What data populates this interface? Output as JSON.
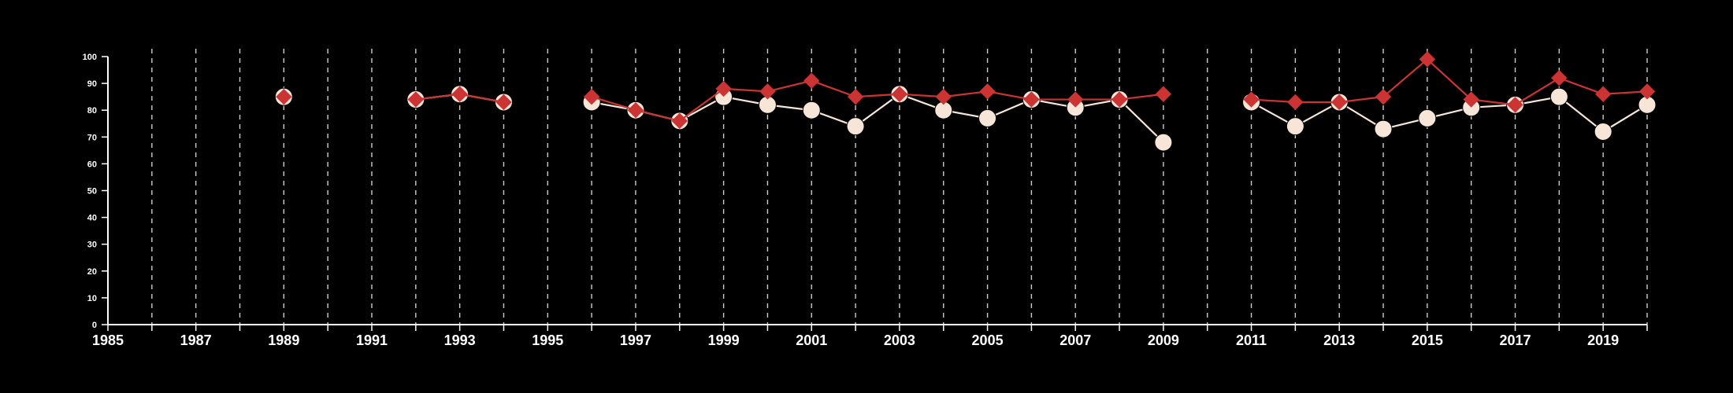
{
  "colors": {
    "background": "#000000",
    "axis": "#ffffff",
    "grid": "#cccccc",
    "series_white": "#f7e6d8",
    "series_red": "#cc3333"
  },
  "chart_data": {
    "type": "line",
    "title": "",
    "xlabel": "",
    "ylabel": "",
    "xlim": [
      1985,
      2020
    ],
    "ylim": [
      0,
      100
    ],
    "y_ticks": [
      0,
      10,
      20,
      30,
      40,
      50,
      60,
      70,
      80,
      90,
      100
    ],
    "x_tick_labels": [
      1985,
      1987,
      1989,
      1991,
      1993,
      1995,
      1997,
      1999,
      2001,
      2003,
      2005,
      2007,
      2009,
      2011,
      2013,
      2015,
      2017,
      2019
    ],
    "grid": "vertical dashed lines at every year",
    "series": [
      {
        "marker": "circle",
        "color": "#f7e6d8",
        "x": [
          1989,
          1992,
          1993,
          1994,
          1996,
          1997,
          1998,
          1999,
          2000,
          2001,
          2002,
          2003,
          2004,
          2005,
          2006,
          2007,
          2008,
          2009,
          2011,
          2012,
          2013,
          2014,
          2015,
          2016,
          2017,
          2018,
          2019,
          2020
        ],
        "y": [
          85,
          84,
          86,
          83,
          83,
          80,
          76,
          85,
          82,
          80,
          74,
          86,
          80,
          77,
          84,
          81,
          84,
          68,
          83,
          74,
          83,
          73,
          77,
          81,
          82,
          85,
          72,
          82
        ]
      },
      {
        "marker": "diamond",
        "color": "#cc3333",
        "x": [
          1989,
          1992,
          1993,
          1994,
          1996,
          1997,
          1998,
          1999,
          2000,
          2001,
          2002,
          2003,
          2004,
          2005,
          2006,
          2007,
          2008,
          2009,
          2011,
          2012,
          2013,
          2014,
          2015,
          2016,
          2017,
          2018,
          2019,
          2020
        ],
        "y": [
          85,
          84,
          86,
          83,
          85,
          80,
          76,
          88,
          87,
          91,
          85,
          86,
          85,
          87,
          84,
          84,
          84,
          86,
          84,
          83,
          83,
          85,
          99,
          84,
          82,
          92,
          86,
          87
        ]
      }
    ]
  }
}
